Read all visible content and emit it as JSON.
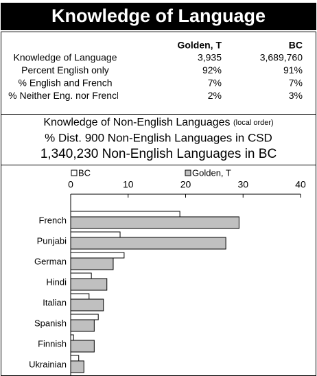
{
  "header": {
    "title": "Knowledge of Language"
  },
  "table": {
    "columns": [
      "Golden, T",
      "BC"
    ],
    "rows": [
      [
        "Knowledge of Language",
        "3,935",
        "3,689,760"
      ],
      [
        "Percent English only",
        "92%",
        "91%"
      ],
      [
        "% English and French",
        "7%",
        "7%"
      ],
      [
        "% Neither Eng. nor French",
        "2%",
        "3%"
      ]
    ]
  },
  "subtitles": {
    "line1": "Knowledge of Non-English Languages",
    "line1_note": "(local order)",
    "line2": "% Dist. 900 Non-English Languages in CSD",
    "line3": "1,340,230 Non-English Languages in BC"
  },
  "chart_data": {
    "type": "hbar",
    "categories": [
      "French",
      "Punjabi",
      "German",
      "Hindi",
      "Italian",
      "Spanish",
      "Finnish",
      "Ukrainian"
    ],
    "series": [
      {
        "name": "BC",
        "color": "#ffffff",
        "values": [
          19.0,
          8.6,
          9.3,
          3.6,
          3.2,
          4.8,
          0.5,
          1.4
        ]
      },
      {
        "name": "Golden, T",
        "color": "#c0c0c0",
        "values": [
          29.3,
          27.0,
          7.4,
          6.3,
          5.7,
          4.1,
          4.1,
          2.3
        ]
      }
    ],
    "xlim": [
      0,
      40
    ],
    "xticks": [
      0,
      10,
      20,
      30,
      40
    ],
    "legend": "top"
  }
}
